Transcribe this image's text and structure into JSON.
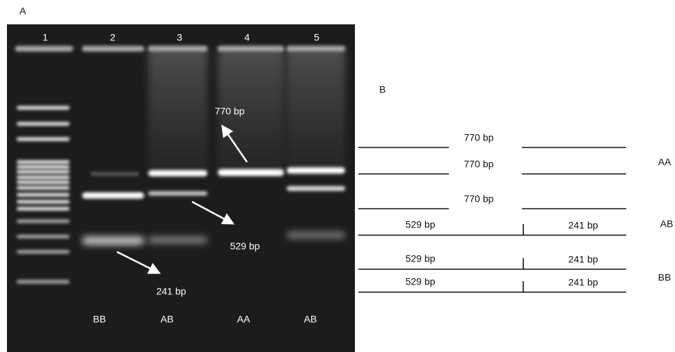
{
  "panel_a": {
    "label": "A",
    "lanes": [
      "1",
      "2",
      "3",
      "4",
      "5"
    ],
    "genotypes": [
      "BB",
      "AB",
      "AA",
      "AB"
    ],
    "annotations": [
      "770 bp",
      "529 bp",
      "241 bp"
    ]
  },
  "panel_b": {
    "label": "B",
    "rows": [
      {
        "labels": [
          "770 bp"
        ]
      },
      {
        "labels": [
          "770 bp"
        ]
      },
      {
        "labels": [
          "770 bp"
        ]
      },
      {
        "labels": [
          "529 bp",
          "241 bp"
        ]
      },
      {
        "labels": [
          "529 bp",
          "241 bp"
        ]
      },
      {
        "labels": [
          "529 bp",
          "241 bp"
        ]
      }
    ],
    "genotypes": [
      "AA",
      "AB",
      "BB"
    ]
  }
}
